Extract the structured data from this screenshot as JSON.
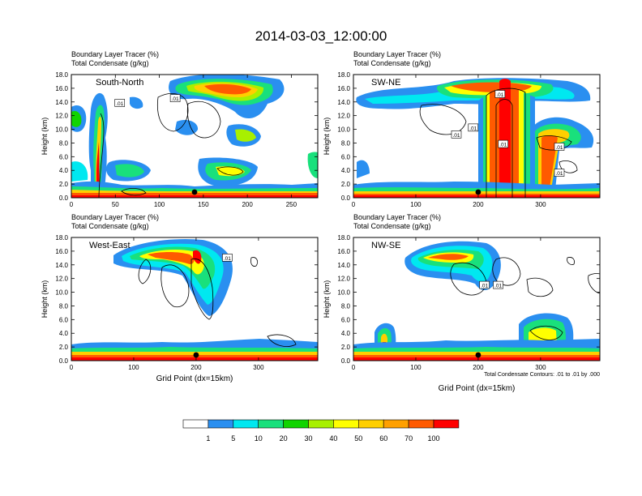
{
  "figure": {
    "title": "2014-03-03_12:00:00",
    "footnote": "Total Condensate Contours: .01 to .01 by .000"
  },
  "colorbar": {
    "labels": [
      "1",
      "5",
      "10",
      "20",
      "30",
      "40",
      "50",
      "60",
      "70",
      "100"
    ],
    "colors": [
      "#ffffff",
      "#2a8ff0",
      "#00e8f0",
      "#19e07c",
      "#11d400",
      "#a8f000",
      "#ffff00",
      "#ffcf00",
      "#ffa000",
      "#ff5a00",
      "#ff0000"
    ]
  },
  "chart_data": [
    {
      "type": "contour",
      "panel": "South-North",
      "title_line1": "Boundary Layer Tracer   (%)",
      "title_line2": "Total Condensate   (g/kg)",
      "ylabel": "Height (km)",
      "xlabel": "",
      "xlim": [
        0,
        280
      ],
      "ylim": [
        0,
        18
      ],
      "x_ticks": [
        0,
        50,
        100,
        150,
        200,
        250
      ],
      "y_ticks": [
        "0.0",
        "2.0",
        "4.0",
        "6.0",
        "8.0",
        "10.0",
        "12.0",
        "14.0",
        "16.0",
        "18.0"
      ],
      "marker_x": 140,
      "contour_labels": [
        {
          "text": ".01",
          "x": 55,
          "y": 13.8
        },
        {
          "text": ".01",
          "x": 118,
          "y": 14.5
        }
      ]
    },
    {
      "type": "contour",
      "panel": "SW-NE",
      "title_line1": "Boundary Layer Tracer   (%)",
      "title_line2": "Total Condensate   (g/kg)",
      "ylabel": "Height (km)",
      "xlabel": "",
      "xlim": [
        0,
        395
      ],
      "ylim": [
        0,
        18
      ],
      "x_ticks": [
        0,
        100,
        200,
        300
      ],
      "y_ticks": [
        "0.0",
        "2.0",
        "4.0",
        "6.0",
        "8.0",
        "10.0",
        "12.0",
        "14.0",
        "16.0",
        "18.0"
      ],
      "marker_x": 200,
      "contour_labels": [
        {
          "text": ".01",
          "x": 165,
          "y": 9.2
        },
        {
          "text": ".01",
          "x": 192,
          "y": 10.2
        },
        {
          "text": ".01",
          "x": 235,
          "y": 15.1
        },
        {
          "text": ".01",
          "x": 240,
          "y": 7.8
        },
        {
          "text": ".01",
          "x": 330,
          "y": 7.4
        },
        {
          "text": ".01",
          "x": 330,
          "y": 3.6
        }
      ]
    },
    {
      "type": "contour",
      "panel": "West-East",
      "title_line1": "Boundary Layer Tracer   (%)",
      "title_line2": "Total Condensate   (g/kg)",
      "ylabel": "Height (km)",
      "xlabel": "Grid Point (dx=15km)",
      "xlim": [
        0,
        395
      ],
      "ylim": [
        0,
        18
      ],
      "x_ticks": [
        0,
        100,
        200,
        300
      ],
      "y_ticks": [
        "0.0",
        "2.0",
        "4.0",
        "6.0",
        "8.0",
        "10.0",
        "12.0",
        "14.0",
        "16.0",
        "18.0"
      ],
      "marker_x": 200,
      "contour_labels": [
        {
          "text": ".01",
          "x": 250,
          "y": 15.0
        }
      ]
    },
    {
      "type": "contour",
      "panel": "NW-SE",
      "title_line1": "Boundary Layer Tracer   (%)",
      "title_line2": "Total Condensate   (g/kg)",
      "ylabel": "Height (km)",
      "xlabel": "Grid Point (dx=15km)",
      "xlim": [
        0,
        395
      ],
      "ylim": [
        0,
        18
      ],
      "x_ticks": [
        0,
        100,
        200,
        300
      ],
      "y_ticks": [
        "0.0",
        "2.0",
        "4.0",
        "6.0",
        "8.0",
        "10.0",
        "12.0",
        "14.0",
        "16.0",
        "18.0"
      ],
      "marker_x": 200,
      "contour_labels": [
        {
          "text": ".01",
          "x": 210,
          "y": 11.0
        },
        {
          "text": ".01",
          "x": 232,
          "y": 11.0
        }
      ]
    }
  ]
}
